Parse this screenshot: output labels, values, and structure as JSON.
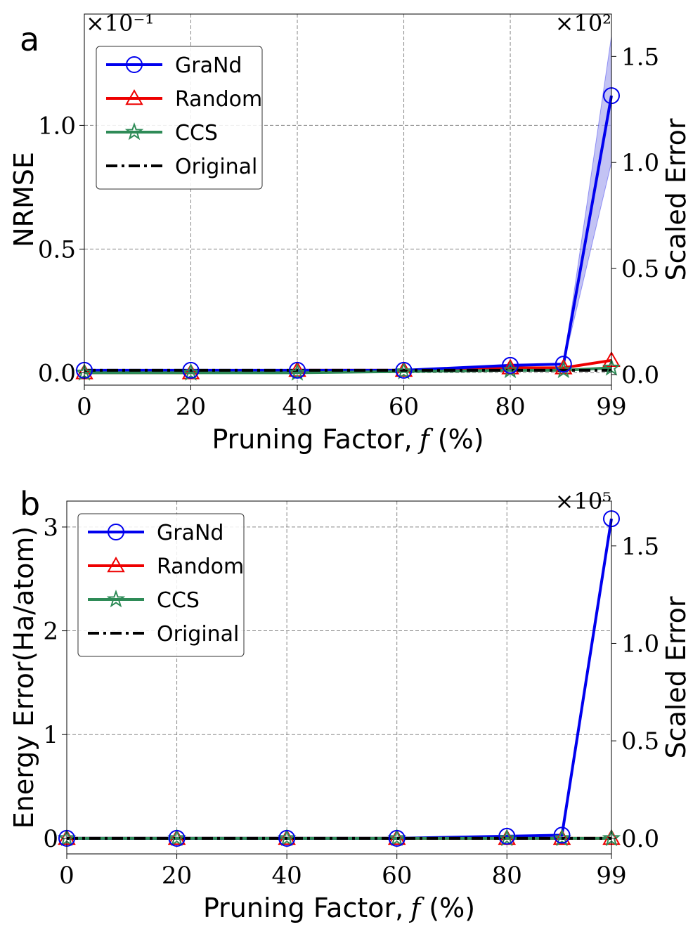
{
  "figure": {
    "colors": {
      "grand": "#0000ee",
      "grand_band": "#a9a9f0",
      "random": "#ee0000",
      "ccs": "#2e8b57",
      "original": "#000000",
      "grid": "#888888"
    }
  },
  "chart_data": [
    {
      "type": "line",
      "panel_label": "a",
      "xlabel": "Pruning Factor, f (%)",
      "xlabel_prefix": "Pruning Factor,",
      "xlabel_var": "f",
      "xlabel_suffix": "(%)",
      "ylabel": "NRMSE",
      "y2label": "Scaled Error",
      "y_scale_label": "×10⁻¹",
      "y2_scale_label": "×10²",
      "x": [
        0,
        20,
        40,
        60,
        80,
        90,
        99
      ],
      "xtick_labels": [
        "0",
        "20",
        "40",
        "60",
        "80",
        "99"
      ],
      "xtick_values": [
        0,
        20,
        40,
        60,
        80,
        99
      ],
      "ylim": [
        -0.05,
        1.45
      ],
      "yticks": [
        0.0,
        0.5,
        1.0
      ],
      "ytick_labels": [
        "0.0",
        "0.5",
        "1.0"
      ],
      "y2lim": [
        -0.05,
        1.7
      ],
      "y2ticks": [
        0.0,
        0.5,
        1.0,
        1.5
      ],
      "y2tick_labels": [
        "0.0",
        "0.5",
        "1.0",
        "1.5"
      ],
      "series": [
        {
          "name": "GraNd",
          "marker": "circle",
          "values": [
            0.01,
            0.01,
            0.01,
            0.01,
            0.03,
            0.035,
            1.12
          ],
          "band_low": [
            0.01,
            0.01,
            0.01,
            0.01,
            0.03,
            0.035,
            0.85
          ],
          "band_high": [
            0.01,
            0.01,
            0.01,
            0.01,
            0.03,
            0.035,
            1.36
          ]
        },
        {
          "name": "Random",
          "marker": "triangle",
          "values": [
            0.0,
            0.0,
            0.01,
            0.01,
            0.02,
            0.02,
            0.05
          ]
        },
        {
          "name": "CCS",
          "marker": "star",
          "values": [
            0.0,
            0.0,
            0.0,
            0.005,
            0.01,
            0.01,
            0.02
          ]
        },
        {
          "name": "Original",
          "marker": "none",
          "style": "dashdot",
          "values": [
            0.01,
            0.01,
            0.01,
            0.01,
            0.01,
            0.01,
            0.01
          ]
        }
      ],
      "legend_position": "upper-left"
    },
    {
      "type": "line",
      "panel_label": "b",
      "xlabel": "Pruning Factor, f (%)",
      "xlabel_prefix": "Pruning Factor,",
      "xlabel_var": "f",
      "xlabel_suffix": "(%)",
      "ylabel": "Energy Error(Ha/atom)",
      "y2label": "Scaled Error",
      "y_scale_label": "",
      "y2_scale_label": "×10⁵",
      "x": [
        0,
        20,
        40,
        60,
        80,
        90,
        99
      ],
      "xtick_labels": [
        "0",
        "20",
        "40",
        "60",
        "80",
        "99"
      ],
      "xtick_values": [
        0,
        20,
        40,
        60,
        80,
        99
      ],
      "ylim": [
        -0.15,
        3.25
      ],
      "yticks": [
        0,
        1,
        2,
        3
      ],
      "ytick_labels": [
        "0",
        "1",
        "2",
        "3"
      ],
      "y2lim": [
        -0.08,
        1.73
      ],
      "y2ticks": [
        0.0,
        0.5,
        1.0,
        1.5
      ],
      "y2tick_labels": [
        "0.0",
        "0.5",
        "1.0",
        "1.5"
      ],
      "series": [
        {
          "name": "GraNd",
          "marker": "circle",
          "values": [
            0.0,
            0.0,
            0.0,
            0.0,
            0.02,
            0.03,
            3.08
          ]
        },
        {
          "name": "Random",
          "marker": "triangle",
          "values": [
            0.0,
            0.0,
            0.0,
            0.0,
            0.0,
            0.0,
            0.0
          ]
        },
        {
          "name": "CCS",
          "marker": "star",
          "values": [
            0.0,
            0.0,
            0.0,
            0.0,
            0.0,
            0.0,
            0.0
          ]
        },
        {
          "name": "Original",
          "marker": "none",
          "style": "dashdot",
          "values": [
            0.0,
            0.0,
            0.0,
            0.0,
            0.0,
            0.0,
            0.0
          ]
        }
      ],
      "legend_position": "upper-left"
    }
  ]
}
